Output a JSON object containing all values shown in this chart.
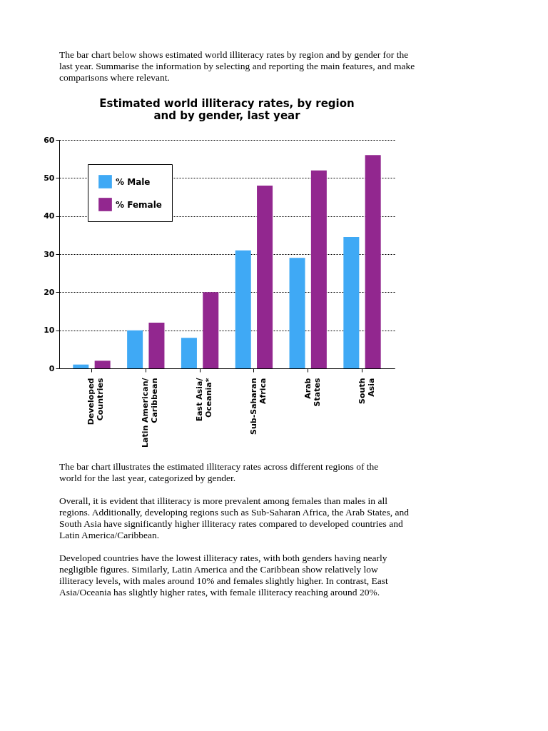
{
  "chart_data": {
    "type": "bar",
    "title": "Estimated world illiteracy rates, by region and by gender, last year",
    "categories": [
      "Developed\nCountries",
      "Latin American/\nCaribbean",
      "East Asia/\nOceania*",
      "Sub-Saharan\nAfrica",
      "Arab\nStates",
      "South\nAsia"
    ],
    "series": [
      {
        "name": "% Male",
        "color": "#3fa9f5",
        "values": [
          1,
          10,
          8,
          31,
          29,
          34.5
        ]
      },
      {
        "name": "% Female",
        "color": "#92278f",
        "values": [
          2,
          12,
          20,
          48,
          52,
          56
        ]
      }
    ],
    "ylim": [
      0,
      60
    ],
    "yticks": [
      0,
      10,
      20,
      30,
      40,
      50,
      60
    ],
    "grid": "y",
    "legend": "top left",
    "annotations": [
      "The bar chart below shows estimated world illiteracy rates by region and by gender for the last year. Summarise the information by selecting and reporting the main features, and make comparisons where relevant.",
      "The bar chart illustrates the estimated illiteracy rates across different regions of the world for the last year, categorized by gender.",
      "Overall, it is evident that illiteracy is more prevalent among females than males in all regions. Additionally, developing regions such as Sub-Saharan Africa, the Arab States, and South Asia have significantly higher illiteracy rates compared to developed countries and Latin America/Caribbean.",
      "Developed countries have the lowest illiteracy rates, with both genders having nearly negligible figures. Similarly, Latin America and the Caribbean show relatively low illiteracy levels, with males around 10% and females slightly higher. In contrast, East Asia/Oceania has slightly higher rates, with female illiteracy reaching around 20%."
    ]
  }
}
